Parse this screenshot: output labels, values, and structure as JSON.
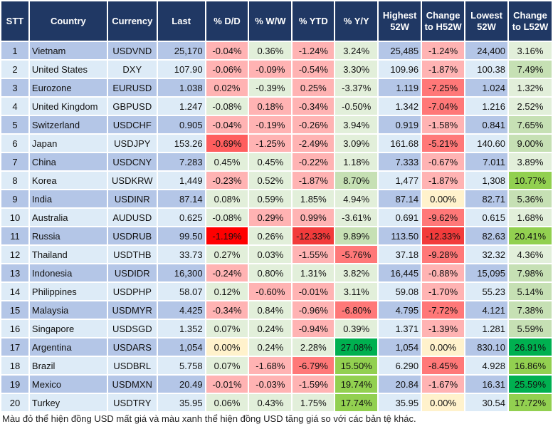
{
  "headers": [
    "STT",
    "Country",
    "Currency",
    "Last",
    "% D/D",
    "% W/W",
    "% YTD",
    "% Y/Y",
    "Highest 52W",
    "Change to H52W",
    "Lowest 52W",
    "Change to L52W"
  ],
  "colors": {
    "header": "#203864",
    "row_odd": "#B4C6E7",
    "row_even": "#DDEBF7",
    "light_red": "#FFB3B3",
    "red": "#FF7878",
    "strong_red": "#F23B3B",
    "bright_red": "#FF0000",
    "light_green": "#E2EFDA",
    "green": "#C6E0B4",
    "bright_green": "#92D050",
    "strong_green": "#00B050",
    "neutral": "#FFF2CC"
  },
  "rows": [
    {
      "stt": "1",
      "country": "Vietnam",
      "currency": "USDVND",
      "last": "25,170",
      "dd": "-0.04%",
      "ww": "0.36%",
      "ytd": "-1.24%",
      "yy": "3.24%",
      "high": "25,485",
      "chh": "-1.24%",
      "low": "24,400",
      "chl": "3.16%",
      "tones": [
        "r1",
        "g1",
        "r1",
        "g1",
        "r1",
        "g1"
      ]
    },
    {
      "stt": "2",
      "country": "United States",
      "currency": "DXY",
      "last": "107.90",
      "dd": "-0.06%",
      "ww": "-0.09%",
      "ytd": "-0.54%",
      "yy": "3.30%",
      "high": "109.96",
      "chh": "-1.87%",
      "low": "100.38",
      "chl": "7.49%",
      "tones": [
        "r1",
        "r1",
        "r1",
        "g1",
        "r1",
        "g2"
      ]
    },
    {
      "stt": "3",
      "country": "Eurozone",
      "currency": "EURUSD",
      "last": "1.038",
      "dd": "0.02%",
      "ww": "-0.39%",
      "ytd": "0.25%",
      "yy": "-3.37%",
      "high": "1.119",
      "chh": "-7.25%",
      "low": "1.024",
      "chl": "1.32%",
      "tones": [
        "r1",
        "g1",
        "r1",
        "g1",
        "r2",
        "g1"
      ]
    },
    {
      "stt": "4",
      "country": "United Kingdom",
      "currency": "GBPUSD",
      "last": "1.247",
      "dd": "-0.08%",
      "ww": "0.18%",
      "ytd": "-0.34%",
      "yy": "-0.50%",
      "high": "1.342",
      "chh": "-7.04%",
      "low": "1.216",
      "chl": "2.52%",
      "tones": [
        "g1",
        "r1",
        "r1",
        "g1",
        "r2",
        "g1"
      ]
    },
    {
      "stt": "5",
      "country": "Switzerland",
      "currency": "USDCHF",
      "last": "0.905",
      "dd": "-0.04%",
      "ww": "-0.19%",
      "ytd": "-0.26%",
      "yy": "3.94%",
      "high": "0.919",
      "chh": "-1.58%",
      "low": "0.841",
      "chl": "7.65%",
      "tones": [
        "r1",
        "r1",
        "r1",
        "g1",
        "r1",
        "g2"
      ]
    },
    {
      "stt": "6",
      "country": "Japan",
      "currency": "USDJPY",
      "last": "153.26",
      "dd": "-0.69%",
      "ww": "-1.25%",
      "ytd": "-2.49%",
      "yy": "3.09%",
      "high": "161.68",
      "chh": "-5.21%",
      "low": "140.60",
      "chl": "9.00%",
      "tones": [
        "r5",
        "r1",
        "r1",
        "g1",
        "r2",
        "g2"
      ]
    },
    {
      "stt": "7",
      "country": "China",
      "currency": "USDCNY",
      "last": "7.283",
      "dd": "0.45%",
      "ww": "0.45%",
      "ytd": "-0.22%",
      "yy": "1.18%",
      "high": "7.333",
      "chh": "-0.67%",
      "low": "7.011",
      "chl": "3.89%",
      "tones": [
        "g1",
        "g1",
        "r1",
        "g1",
        "r1",
        "g1"
      ]
    },
    {
      "stt": "8",
      "country": "Korea",
      "currency": "USDKRW",
      "last": "1,449",
      "dd": "-0.23%",
      "ww": "0.52%",
      "ytd": "-1.87%",
      "yy": "8.70%",
      "high": "1,477",
      "chh": "-1.87%",
      "low": "1,308",
      "chl": "10.77%",
      "tones": [
        "r1",
        "g1",
        "r1",
        "g2",
        "r1",
        "g3"
      ]
    },
    {
      "stt": "9",
      "country": "India",
      "currency": "USDINR",
      "last": "87.14",
      "dd": "0.08%",
      "ww": "0.59%",
      "ytd": "1.85%",
      "yy": "4.94%",
      "high": "87.14",
      "chh": "0.00%",
      "low": "82.71",
      "chl": "5.36%",
      "tones": [
        "g1",
        "g1",
        "g1",
        "g1",
        "y",
        "g2"
      ]
    },
    {
      "stt": "10",
      "country": "Australia",
      "currency": "AUDUSD",
      "last": "0.625",
      "dd": "-0.08%",
      "ww": "0.29%",
      "ytd": "0.99%",
      "yy": "-3.61%",
      "high": "0.691",
      "chh": "-9.62%",
      "low": "0.615",
      "chl": "1.68%",
      "tones": [
        "g1",
        "r1",
        "r1",
        "g1",
        "r2",
        "g1"
      ]
    },
    {
      "stt": "11",
      "country": "Russia",
      "currency": "USDRUB",
      "last": "99.50",
      "dd": "-1.19%",
      "ww": "0.26%",
      "ytd": "-12.33%",
      "yy": "9.89%",
      "high": "113.50",
      "chh": "-12.33%",
      "low": "82.63",
      "chl": "20.41%",
      "tones": [
        "r4",
        "g1",
        "r3",
        "g2",
        "r3",
        "g3"
      ]
    },
    {
      "stt": "12",
      "country": "Thailand",
      "currency": "USDTHB",
      "last": "33.73",
      "dd": "0.27%",
      "ww": "0.03%",
      "ytd": "-1.55%",
      "yy": "-5.76%",
      "high": "37.18",
      "chh": "-9.28%",
      "low": "32.32",
      "chl": "4.36%",
      "tones": [
        "g1",
        "g1",
        "r1",
        "r2",
        "r2",
        "g1"
      ]
    },
    {
      "stt": "13",
      "country": "Indonesia",
      "currency": "USDIDR",
      "last": "16,300",
      "dd": "-0.24%",
      "ww": "0.80%",
      "ytd": "1.31%",
      "yy": "3.82%",
      "high": "16,445",
      "chh": "-0.88%",
      "low": "15,095",
      "chl": "7.98%",
      "tones": [
        "r1",
        "g1",
        "g1",
        "g1",
        "r1",
        "g2"
      ]
    },
    {
      "stt": "14",
      "country": "Philippines",
      "currency": "USDPHP",
      "last": "58.07",
      "dd": "0.12%",
      "ww": "-0.60%",
      "ytd": "-0.01%",
      "yy": "3.11%",
      "high": "59.08",
      "chh": "-1.70%",
      "low": "55.23",
      "chl": "5.14%",
      "tones": [
        "g1",
        "r1",
        "r1",
        "g1",
        "r1",
        "g2"
      ]
    },
    {
      "stt": "15",
      "country": "Malaysia",
      "currency": "USDMYR",
      "last": "4.425",
      "dd": "-0.34%",
      "ww": "0.84%",
      "ytd": "-0.96%",
      "yy": "-6.80%",
      "high": "4.795",
      "chh": "-7.72%",
      "low": "4.121",
      "chl": "7.38%",
      "tones": [
        "r1",
        "g1",
        "r1",
        "r2",
        "r2",
        "g2"
      ]
    },
    {
      "stt": "16",
      "country": "Singapore",
      "currency": "USDSGD",
      "last": "1.352",
      "dd": "0.07%",
      "ww": "0.24%",
      "ytd": "-0.94%",
      "yy": "0.39%",
      "high": "1.371",
      "chh": "-1.39%",
      "low": "1.281",
      "chl": "5.59%",
      "tones": [
        "g1",
        "g1",
        "r1",
        "g1",
        "r1",
        "g2"
      ]
    },
    {
      "stt": "17",
      "country": "Argentina",
      "currency": "USDARS",
      "last": "1,054",
      "dd": "0.00%",
      "ww": "0.24%",
      "ytd": "2.28%",
      "yy": "27.08%",
      "high": "1,054",
      "chh": "0.00%",
      "low": "830.10",
      "chl": "26.91%",
      "tones": [
        "y",
        "g1",
        "g1",
        "g4",
        "y",
        "g4"
      ]
    },
    {
      "stt": "18",
      "country": "Brazil",
      "currency": "USDBRL",
      "last": "5.758",
      "dd": "0.07%",
      "ww": "-1.68%",
      "ytd": "-6.79%",
      "yy": "15.50%",
      "high": "6.290",
      "chh": "-8.45%",
      "low": "4.928",
      "chl": "16.86%",
      "tones": [
        "g1",
        "r1",
        "r2",
        "g3",
        "r2",
        "g3"
      ]
    },
    {
      "stt": "19",
      "country": "Mexico",
      "currency": "USDMXN",
      "last": "20.49",
      "dd": "-0.01%",
      "ww": "-0.03%",
      "ytd": "-1.59%",
      "yy": "19.74%",
      "high": "20.84",
      "chh": "-1.67%",
      "low": "16.31",
      "chl": "25.59%",
      "tones": [
        "r1",
        "r1",
        "r1",
        "g3",
        "r1",
        "g4"
      ]
    },
    {
      "stt": "20",
      "country": "Turkey",
      "currency": "USDTRY",
      "last": "35.95",
      "dd": "0.06%",
      "ww": "0.43%",
      "ytd": "1.75%",
      "yy": "17.74%",
      "high": "35.95",
      "chh": "0.00%",
      "low": "30.54",
      "chl": "17.72%",
      "tones": [
        "g1",
        "g1",
        "g1",
        "g3",
        "y",
        "g3"
      ]
    }
  ],
  "footnote": "Màu đỏ thể hiện đồng USD mất giá và màu xanh thể hiện đồng USD tăng giá so với các bản tệ khác."
}
